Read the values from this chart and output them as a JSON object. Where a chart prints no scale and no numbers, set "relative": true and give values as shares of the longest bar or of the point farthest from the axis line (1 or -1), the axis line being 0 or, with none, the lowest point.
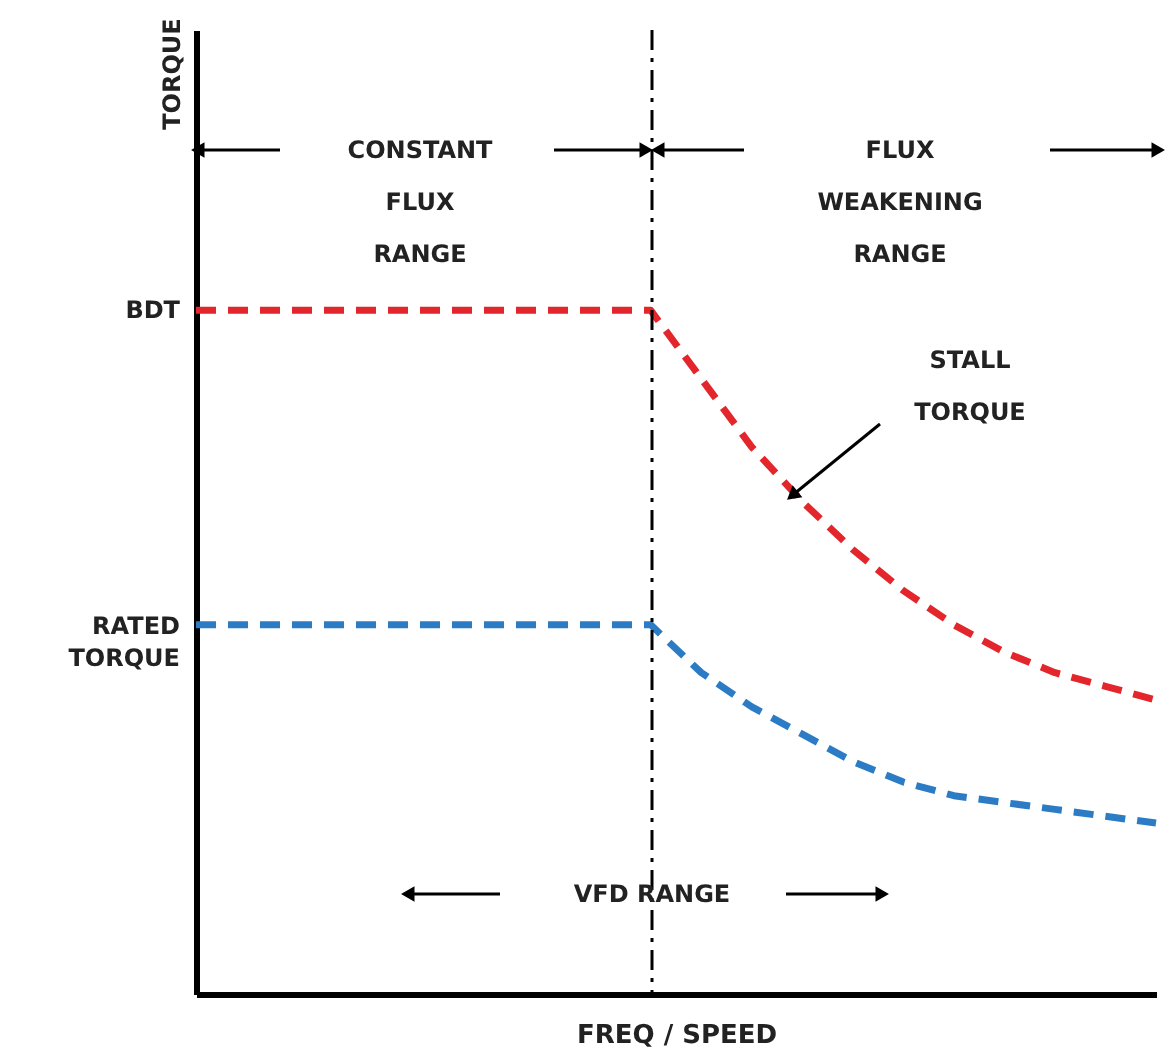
{
  "chart_data": {
    "type": "line",
    "relative": true,
    "xlabel": "FREQ / SPEED",
    "line_style": "dashed",
    "marker": "none",
    "grid": false,
    "tick_labels": false,
    "categories": [
      null,
      null,
      null,
      null,
      null,
      null,
      null,
      null,
      null,
      null,
      null,
      null,
      null,
      null,
      null,
      null,
      null,
      null,
      null,
      null
    ],
    "series": [
      {
        "color": "#e3262b",
        "values": [
          1,
          1,
          1,
          1,
          1,
          1,
          1,
          1,
          1,
          1,
          0.9,
          0.8,
          0.72,
          0.65,
          0.59,
          0.54,
          0.5,
          0.47,
          0.45,
          0.43
        ]
      },
      {
        "color": "#2b7cc4",
        "values": [
          0.54,
          0.54,
          0.54,
          0.54,
          0.54,
          0.54,
          0.54,
          0.54,
          0.54,
          0.54,
          0.47,
          0.42,
          0.38,
          0.34,
          0.31,
          0.29,
          0.28,
          0.27,
          0.26,
          0.25
        ]
      }
    ],
    "annotations": [
      "TORQUE",
      "BDT",
      "RATED TORQUE",
      "CONSTANT FLUX RANGE",
      "FLUX WEAKENING RANGE",
      "STALL TORQUE",
      "VFD RANGE"
    ]
  }
}
